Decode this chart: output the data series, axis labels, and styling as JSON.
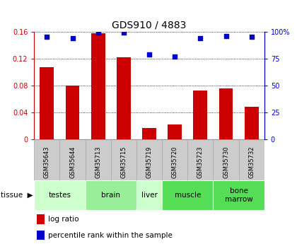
{
  "title": "GDS910 / 4883",
  "samples": [
    "GSM35643",
    "GSM35644",
    "GSM35713",
    "GSM35715",
    "GSM35719",
    "GSM35720",
    "GSM35723",
    "GSM35730",
    "GSM35732"
  ],
  "log_ratio": [
    0.107,
    0.08,
    0.158,
    0.122,
    0.016,
    0.022,
    0.072,
    0.075,
    0.048
  ],
  "percentile_rank": [
    95.5,
    94.0,
    99.5,
    99.0,
    78.5,
    77.0,
    94.0,
    96.0,
    95.0
  ],
  "bar_color": "#cc0000",
  "dot_color": "#0000cc",
  "ylim_left": [
    0,
    0.16
  ],
  "ylim_right": [
    0,
    100
  ],
  "yticks_left": [
    0,
    0.04,
    0.08,
    0.12,
    0.16
  ],
  "ytick_labels_left": [
    "0",
    "0.04",
    "0.08",
    "0.12",
    "0.16"
  ],
  "yticks_right": [
    0,
    25,
    50,
    75,
    100
  ],
  "ytick_labels_right": [
    "0",
    "25",
    "50",
    "75",
    "100%"
  ],
  "tissues": [
    {
      "label": "testes",
      "cols": [
        0,
        1
      ],
      "color": "#ccffcc"
    },
    {
      "label": "brain",
      "cols": [
        2,
        3
      ],
      "color": "#99ee99"
    },
    {
      "label": "liver",
      "cols": [
        4
      ],
      "color": "#ccffcc"
    },
    {
      "label": "muscle",
      "cols": [
        5,
        6
      ],
      "color": "#55dd55"
    },
    {
      "label": "bone\nmarrow",
      "cols": [
        7,
        8
      ],
      "color": "#55dd55"
    }
  ],
  "tissue_label": "tissue",
  "legend_red": "log ratio",
  "legend_blue": "percentile rank within the sample",
  "left_axis_color": "#cc0000",
  "right_axis_color": "#0000cc",
  "bar_width": 0.55,
  "sample_bg_color": "#cccccc",
  "sample_bg_edge": "#aaaaaa",
  "grid_color": "black",
  "title_fontsize": 10,
  "tick_fontsize": 7,
  "sample_fontsize": 6,
  "tissue_fontsize": 7.5,
  "legend_fontsize": 7.5
}
